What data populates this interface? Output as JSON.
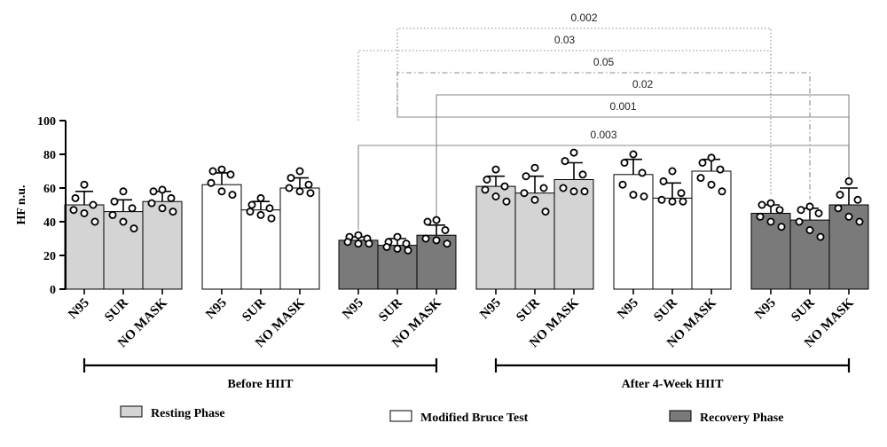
{
  "chart_data": {
    "type": "bar",
    "ylabel": "HF n.u.",
    "ylim": [
      0,
      100
    ],
    "yticks": [
      0,
      20,
      40,
      60,
      80,
      100
    ],
    "categories": [
      "N95",
      "SUR",
      "NO MASK",
      "N95",
      "SUR",
      "NO MASK",
      "N95",
      "SUR",
      "NO MASK",
      "N95",
      "SUR",
      "NO MASK",
      "N95",
      "SUR",
      "NO MASK",
      "N95",
      "SUR",
      "NO MASK"
    ],
    "phases": [
      "resting",
      "bruce",
      "recovery",
      "resting",
      "bruce",
      "recovery"
    ],
    "values": [
      50,
      46,
      52,
      62,
      47,
      60,
      29,
      26,
      32,
      61,
      57,
      65,
      68,
      54,
      70,
      45,
      41,
      50
    ],
    "errors": [
      8,
      7,
      6,
      7,
      5,
      6,
      2,
      4,
      6,
      6,
      10,
      10,
      9,
      9,
      7,
      5,
      7,
      10
    ],
    "points": [
      [
        62,
        54,
        50,
        47,
        45,
        40
      ],
      [
        58,
        52,
        48,
        44,
        40,
        36
      ],
      [
        59,
        58,
        54,
        51,
        48,
        46
      ],
      [
        71,
        70,
        68,
        63,
        58,
        56
      ],
      [
        54,
        50,
        48,
        46,
        44,
        42
      ],
      [
        70,
        66,
        62,
        60,
        58,
        57
      ],
      [
        32,
        31,
        30,
        28,
        27,
        27
      ],
      [
        31,
        28,
        27,
        25,
        24,
        23
      ],
      [
        41,
        40,
        35,
        30,
        29,
        27
      ],
      [
        71,
        65,
        61,
        59,
        55,
        52
      ],
      [
        72,
        67,
        60,
        57,
        53,
        46
      ],
      [
        81,
        76,
        68,
        60,
        58,
        58
      ],
      [
        80,
        75,
        69,
        62,
        56,
        55
      ],
      [
        70,
        64,
        57,
        53,
        52,
        52
      ],
      [
        78,
        75,
        71,
        66,
        62,
        58
      ],
      [
        51,
        50,
        47,
        43,
        40,
        37
      ],
      [
        49,
        47,
        45,
        40,
        35,
        31
      ],
      [
        64,
        56,
        53,
        48,
        43,
        40
      ]
    ],
    "comparisons": [
      {
        "from": 7,
        "to": 15,
        "label": "0.002",
        "style": "dotted"
      },
      {
        "from": 6,
        "to": 15,
        "label": "0.03",
        "style": "dotted"
      },
      {
        "from": 7,
        "to": 16,
        "label": "0.05",
        "style": "dashdot"
      },
      {
        "from": 8,
        "to": 17,
        "label": "0.02",
        "style": "solid"
      },
      {
        "from": 7,
        "to": 17,
        "label": "0.001",
        "style": "solid"
      },
      {
        "from": 6,
        "to": 17,
        "label": "0.003",
        "style": "solid"
      }
    ],
    "groups": [
      {
        "label": "Before HIIT",
        "first": 0,
        "last": 8
      },
      {
        "label": "After 4-Week HIIT",
        "first": 9,
        "last": 17
      }
    ],
    "legend": [
      {
        "label": "Resting Phase",
        "phase": "resting"
      },
      {
        "label": "Modified Bruce Test",
        "phase": "bruce"
      },
      {
        "label": "Recovery Phase",
        "phase": "recovery"
      }
    ],
    "colors": {
      "resting": "#d4d4d4",
      "bruce": "#ffffff",
      "recovery": "#7a7a7a",
      "stroke": "#000000",
      "comparison": "#888888"
    }
  }
}
